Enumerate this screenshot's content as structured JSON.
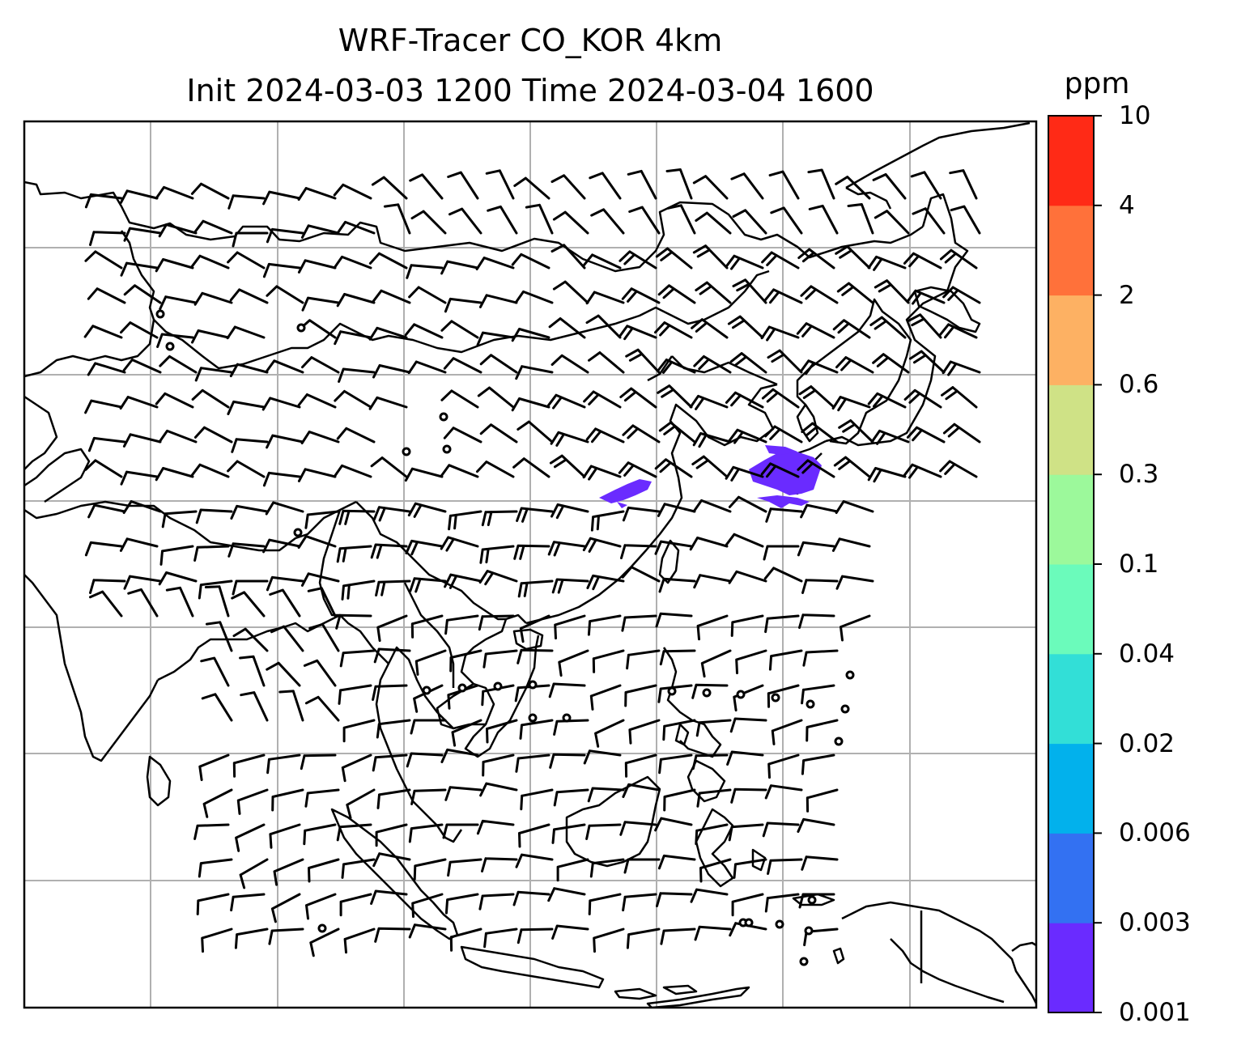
{
  "title_line1": "WRF-Tracer CO_KOR 4km",
  "title_line2": "Init 2024-03-03 1200 Time 2024-03-04 1600",
  "colorbar": {
    "unit": "ppm",
    "levels": [
      "0.001",
      "0.003",
      "0.006",
      "0.02",
      "0.04",
      "0.1",
      "0.3",
      "0.6",
      "2",
      "4",
      "10"
    ],
    "colors": [
      "#6a2bff",
      "#3371f2",
      "#02b1ec",
      "#32dfd7",
      "#6bfbbb",
      "#9cf99b",
      "#cfe286",
      "#fdb163",
      "#ff713a",
      "#ff2a16"
    ]
  },
  "plume_color": "#6a2bff",
  "field": {
    "variable": "CO tracer concentration",
    "wind_barbs": true,
    "gridlines": true
  }
}
